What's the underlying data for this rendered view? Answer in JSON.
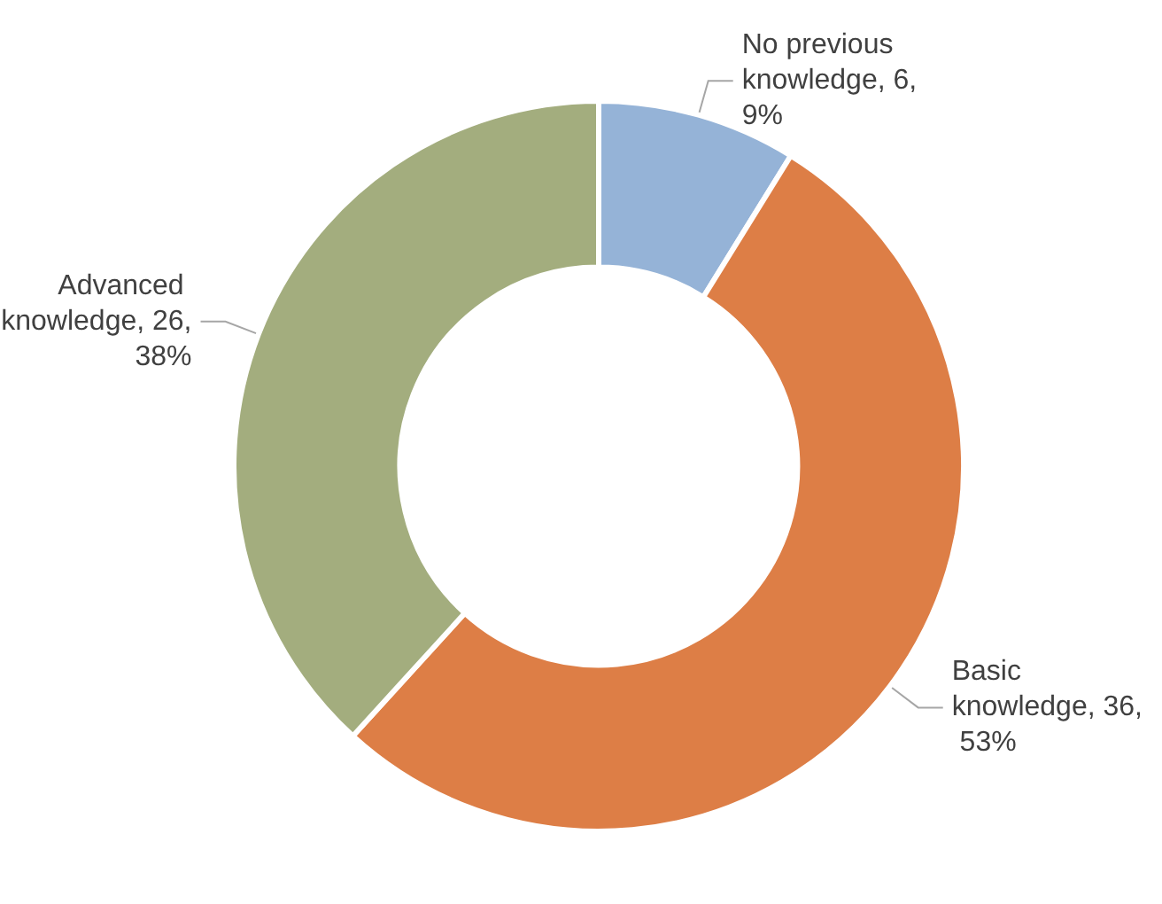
{
  "chart_data": {
    "type": "donut",
    "categories": [
      "No previous knowledge",
      "Basic knowledge",
      "Advanced knowledge"
    ],
    "values": [
      6,
      36,
      26
    ],
    "value_labels": [
      "6, 9%",
      "36, 53%",
      "26, 38%"
    ],
    "colors": [
      "#95b3d7",
      "#dd7e46",
      "#a3ad7e"
    ],
    "legend": false
  }
}
